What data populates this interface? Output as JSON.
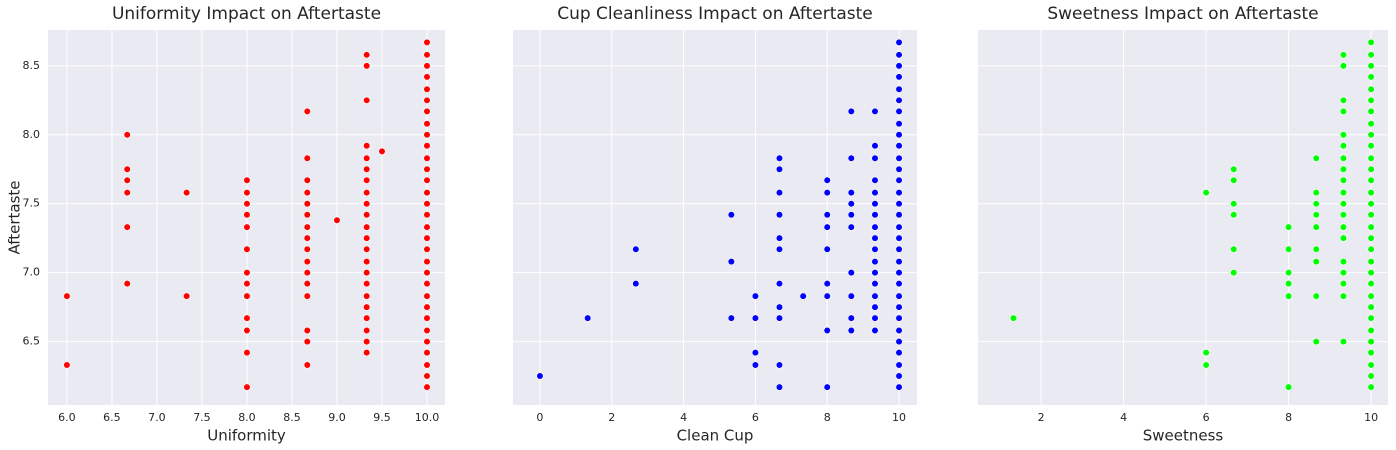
{
  "chart_data": [
    {
      "type": "scatter",
      "title": "Uniformity Impact on Aftertaste",
      "x_label": "Uniformity",
      "y_label": "Aftertaste",
      "color": "#ff0000",
      "grid": true,
      "xlim": [
        5.79,
        10.2
      ],
      "ylim": [
        6.04,
        8.76
      ],
      "xticks": [
        {
          "value": 6,
          "label": "6.0"
        },
        6.5,
        {
          "value": 7,
          "label": "7.0"
        },
        7.5,
        {
          "value": 8,
          "label": "8.0"
        },
        8.5,
        {
          "value": 9,
          "label": "9.0"
        },
        9.5,
        {
          "value": 10,
          "label": "10.0"
        }
      ],
      "yticks": [
        6.5,
        {
          "value": 7,
          "label": "7.0"
        },
        7.5,
        {
          "value": 8,
          "label": "8.0"
        },
        8.5
      ],
      "x": [
        6,
        6,
        6.67,
        6.67,
        6.67,
        6.67,
        6.67,
        6.67,
        7.33,
        7.33,
        8,
        8,
        8,
        8,
        8,
        8,
        8,
        8,
        8,
        8,
        8,
        8,
        8,
        8.67,
        8.67,
        8.67,
        8.67,
        8.67,
        8.67,
        8.67,
        8.67,
        8.67,
        8.67,
        8.67,
        8.67,
        8.67,
        8.67,
        8.67,
        8.67,
        9,
        9.33,
        9.33,
        9.33,
        9.33,
        9.33,
        9.33,
        9.33,
        9.33,
        9.33,
        9.33,
        9.33,
        9.33,
        9.33,
        9.33,
        9.33,
        9.33,
        9.33,
        9.33,
        9.33,
        9.33,
        9.33,
        9.33,
        9.5,
        10,
        10,
        10,
        10,
        10,
        10,
        10,
        10,
        10,
        10,
        10,
        10,
        10,
        10,
        10,
        10,
        10,
        10,
        10,
        10,
        10,
        10,
        10,
        10,
        10,
        10,
        10,
        10,
        10,
        10,
        10
      ],
      "values": [
        6.83,
        6.33,
        8,
        7.75,
        7.67,
        7.58,
        7.33,
        6.92,
        7.58,
        6.83,
        7.67,
        7.58,
        7.5,
        7.42,
        7.33,
        7.17,
        7,
        6.92,
        6.83,
        6.67,
        6.58,
        6.42,
        6.17,
        8.17,
        7.83,
        7.67,
        7.58,
        7.5,
        7.42,
        7.33,
        7.25,
        7.17,
        7.08,
        7,
        6.92,
        6.83,
        6.58,
        6.5,
        6.33,
        7.38,
        8.58,
        8.5,
        8.25,
        7.92,
        7.83,
        7.75,
        7.67,
        7.58,
        7.5,
        7.42,
        7.33,
        7.25,
        7.17,
        7.08,
        7,
        6.92,
        6.83,
        6.75,
        6.67,
        6.58,
        6.5,
        6.42,
        7.88,
        8.67,
        8.58,
        8.5,
        8.42,
        8.33,
        8.25,
        8.17,
        8.08,
        8,
        7.92,
        7.83,
        7.75,
        7.67,
        7.58,
        7.5,
        7.42,
        7.33,
        7.25,
        7.17,
        7.08,
        7,
        6.92,
        6.83,
        6.75,
        6.67,
        6.58,
        6.5,
        6.42,
        6.33,
        6.25,
        6.17
      ]
    },
    {
      "type": "scatter",
      "title": "Cup Cleanliness Impact on Aftertaste",
      "x_label": "Clean Cup",
      "color": "#0000ff",
      "grid": true,
      "xlim": [
        -0.75,
        10.5
      ],
      "ylim": [
        6.04,
        8.76
      ],
      "xticks": [
        0,
        2,
        4,
        6,
        8,
        10
      ],
      "yticks": [
        6.5,
        7,
        7.5,
        8,
        8.5
      ],
      "x": [
        0,
        1.33,
        2.67,
        2.67,
        5.33,
        5.33,
        5.33,
        6,
        6,
        6,
        6,
        6.67,
        6.67,
        6.67,
        6.67,
        6.67,
        6.67,
        6.67,
        6.67,
        6.67,
        6.67,
        6.67,
        7.33,
        8,
        8,
        8,
        8,
        8,
        8,
        8,
        8,
        8,
        8.67,
        8.67,
        8.67,
        8.67,
        8.67,
        8.67,
        8.67,
        8.67,
        8.67,
        8.67,
        9.33,
        9.33,
        9.33,
        9.33,
        9.33,
        9.33,
        9.33,
        9.33,
        9.33,
        9.33,
        9.33,
        9.33,
        9.33,
        9.33,
        9.33,
        9.33,
        9.33,
        10,
        10,
        10,
        10,
        10,
        10,
        10,
        10,
        10,
        10,
        10,
        10,
        10,
        10,
        10,
        10,
        10,
        10,
        10,
        10,
        10,
        10,
        10,
        10,
        10,
        10,
        10,
        10,
        10,
        10,
        10
      ],
      "values": [
        6.25,
        6.67,
        7.17,
        6.92,
        7.42,
        7.08,
        6.67,
        6.83,
        6.67,
        6.42,
        6.33,
        7.83,
        7.75,
        7.58,
        7.42,
        7.25,
        7.17,
        6.92,
        6.75,
        6.67,
        6.33,
        6.17,
        6.83,
        7.67,
        7.58,
        7.42,
        7.33,
        7.17,
        6.92,
        6.83,
        6.58,
        6.17,
        8.17,
        7.83,
        7.58,
        7.5,
        7.42,
        7.33,
        7,
        6.83,
        6.67,
        6.58,
        8.17,
        7.92,
        7.83,
        7.67,
        7.58,
        7.5,
        7.42,
        7.33,
        7.25,
        7.17,
        7.08,
        7,
        6.92,
        6.83,
        6.75,
        6.67,
        6.58,
        8.67,
        8.58,
        8.5,
        8.42,
        8.33,
        8.25,
        8.17,
        8.08,
        8,
        7.92,
        7.83,
        7.75,
        7.67,
        7.58,
        7.5,
        7.42,
        7.33,
        7.25,
        7.17,
        7.08,
        7,
        6.92,
        6.83,
        6.75,
        6.67,
        6.58,
        6.5,
        6.42,
        6.33,
        6.25,
        6.17
      ]
    },
    {
      "type": "scatter",
      "title": "Sweetness Impact on Aftertaste",
      "x_label": "Sweetness",
      "color": "#00ff00",
      "grid": true,
      "xlim": [
        0.47,
        10.41
      ],
      "ylim": [
        6.04,
        8.76
      ],
      "xticks": [
        2,
        4,
        6,
        8,
        10
      ],
      "yticks": [
        6.5,
        7,
        7.5,
        8,
        8.5
      ],
      "x": [
        1.33,
        6,
        6,
        6,
        6.67,
        6.67,
        6.67,
        6.67,
        6.67,
        6.67,
        8,
        8,
        8,
        8,
        8,
        8,
        8.67,
        8.67,
        8.67,
        8.67,
        8.67,
        8.67,
        8.67,
        8.67,
        8.67,
        9.33,
        9.33,
        9.33,
        9.33,
        9.33,
        9.33,
        9.33,
        9.33,
        9.33,
        9.33,
        9.33,
        9.33,
        9.33,
        9.33,
        9.33,
        9.33,
        9.33,
        9.33,
        9.33,
        10,
        10,
        10,
        10,
        10,
        10,
        10,
        10,
        10,
        10,
        10,
        10,
        10,
        10,
        10,
        10,
        10,
        10,
        10,
        10,
        10,
        10,
        10,
        10,
        10,
        10,
        10,
        10,
        10,
        10,
        10
      ],
      "values": [
        6.67,
        7.58,
        6.42,
        6.33,
        7.75,
        7.67,
        7.5,
        7.42,
        7.17,
        7,
        7.33,
        7.17,
        7,
        6.92,
        6.83,
        6.17,
        7.83,
        7.58,
        7.5,
        7.42,
        7.33,
        7.17,
        7.08,
        6.83,
        6.5,
        8.58,
        8.5,
        8.25,
        8.17,
        8,
        7.92,
        7.83,
        7.75,
        7.67,
        7.58,
        7.5,
        7.42,
        7.33,
        7.25,
        7.08,
        7,
        6.92,
        6.83,
        6.5,
        8.67,
        8.58,
        8.5,
        8.42,
        8.33,
        8.25,
        8.17,
        8.08,
        8,
        7.92,
        7.83,
        7.75,
        7.67,
        7.58,
        7.5,
        7.42,
        7.33,
        7.25,
        7.17,
        7.08,
        7,
        6.92,
        6.83,
        6.75,
        6.67,
        6.58,
        6.5,
        6.42,
        6.33,
        6.25,
        6.17
      ]
    }
  ]
}
